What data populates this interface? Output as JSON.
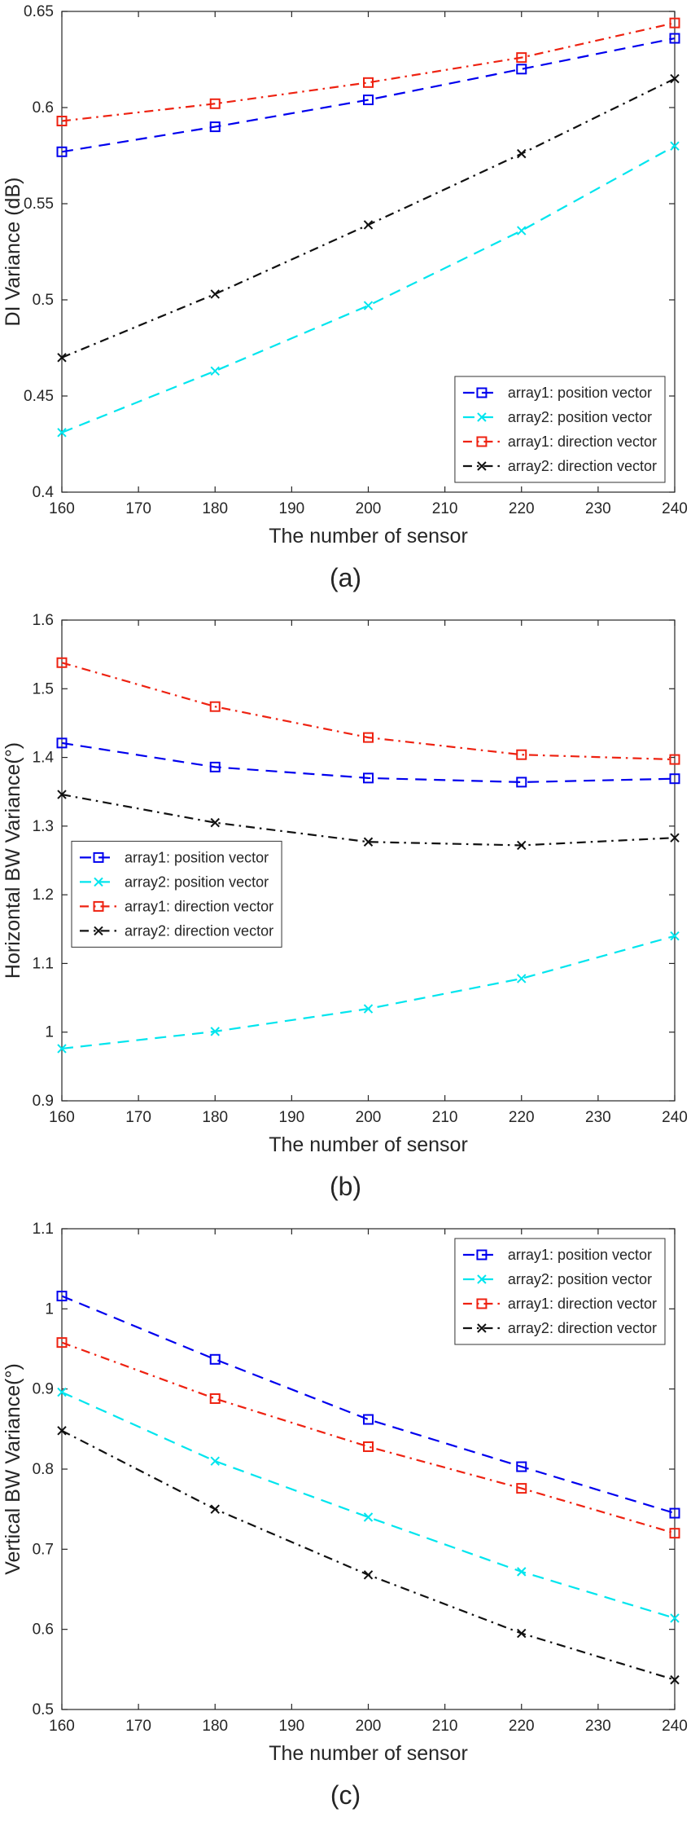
{
  "chart_data": [
    {
      "type": "line",
      "caption": "(a)",
      "xlabel": "The number of sensor",
      "ylabel": "DI Variance (dB)",
      "xlim": [
        160,
        240
      ],
      "ylim": [
        0.4,
        0.65
      ],
      "xticks": [
        160,
        170,
        180,
        190,
        200,
        210,
        220,
        230,
        240
      ],
      "xtick_labels": [
        "160",
        "170",
        "180",
        "190",
        "200",
        "210",
        "220",
        "230",
        "240"
      ],
      "yticks": [
        0.4,
        0.45,
        0.5,
        0.55,
        0.6,
        0.65
      ],
      "ytick_labels": [
        "0.4",
        "0.45",
        "0.5",
        "0.55",
        "0.6",
        "0.65"
      ],
      "grid": false,
      "legend_position": "bottom-right",
      "x": [
        160,
        180,
        200,
        220,
        240
      ],
      "series": [
        {
          "name": "array1: position vector",
          "color": "#0000ee",
          "dash": "dashed",
          "marker": "square",
          "values": [
            0.577,
            0.59,
            0.604,
            0.62,
            0.636
          ]
        },
        {
          "name": "array2: position vector",
          "color": "#00e5ee",
          "dash": "dashed",
          "marker": "x",
          "values": [
            0.431,
            0.463,
            0.497,
            0.536,
            0.58
          ]
        },
        {
          "name": "array1: direction vector",
          "color": "#ee2211",
          "dash": "dashdot",
          "marker": "square",
          "values": [
            0.593,
            0.602,
            0.613,
            0.626,
            0.644
          ]
        },
        {
          "name": "array2: direction vector",
          "color": "#111111",
          "dash": "dashdot",
          "marker": "x",
          "values": [
            0.47,
            0.503,
            0.539,
            0.576,
            0.615
          ]
        }
      ]
    },
    {
      "type": "line",
      "caption": "(b)",
      "xlabel": "The number of sensor",
      "ylabel": "Horizontal BW Variance(°)",
      "xlim": [
        160,
        240
      ],
      "ylim": [
        0.9,
        1.6
      ],
      "xticks": [
        160,
        170,
        180,
        190,
        200,
        210,
        220,
        230,
        240
      ],
      "xtick_labels": [
        "160",
        "170",
        "180",
        "190",
        "200",
        "210",
        "220",
        "230",
        "240"
      ],
      "yticks": [
        0.9,
        1.0,
        1.1,
        1.2,
        1.3,
        1.4,
        1.5,
        1.6
      ],
      "ytick_labels": [
        "0.9",
        "1",
        "1.1",
        "1.2",
        "1.3",
        "1.4",
        "1.5",
        "1.6"
      ],
      "grid": false,
      "legend_position": "left-middle",
      "x": [
        160,
        180,
        200,
        220,
        240
      ],
      "series": [
        {
          "name": "array1: position vector",
          "color": "#0000ee",
          "dash": "dashed",
          "marker": "square",
          "values": [
            1.421,
            1.386,
            1.37,
            1.364,
            1.369
          ]
        },
        {
          "name": "array2: position vector",
          "color": "#00e5ee",
          "dash": "dashed",
          "marker": "x",
          "values": [
            0.976,
            1.001,
            1.034,
            1.078,
            1.14
          ]
        },
        {
          "name": "array1: direction vector",
          "color": "#ee2211",
          "dash": "dashdot",
          "marker": "square",
          "values": [
            1.538,
            1.474,
            1.429,
            1.404,
            1.397
          ]
        },
        {
          "name": "array2: direction vector",
          "color": "#111111",
          "dash": "dashdot",
          "marker": "x",
          "values": [
            1.346,
            1.305,
            1.277,
            1.272,
            1.283
          ]
        }
      ]
    },
    {
      "type": "line",
      "caption": "(c)",
      "xlabel": "The number of sensor",
      "ylabel": "Vertical BW Variance(°)",
      "xlim": [
        160,
        240
      ],
      "ylim": [
        0.5,
        1.1
      ],
      "xticks": [
        160,
        170,
        180,
        190,
        200,
        210,
        220,
        230,
        240
      ],
      "xtick_labels": [
        "160",
        "170",
        "180",
        "190",
        "200",
        "210",
        "220",
        "230",
        "240"
      ],
      "yticks": [
        0.5,
        0.6,
        0.7,
        0.8,
        0.9,
        1.0,
        1.1
      ],
      "ytick_labels": [
        "0.5",
        "0.6",
        "0.7",
        "0.8",
        "0.9",
        "1",
        "1.1"
      ],
      "grid": false,
      "legend_position": "top-right",
      "x": [
        160,
        180,
        200,
        220,
        240
      ],
      "series": [
        {
          "name": "array1: position vector",
          "color": "#0000ee",
          "dash": "dashed",
          "marker": "square",
          "values": [
            1.016,
            0.937,
            0.862,
            0.803,
            0.745
          ]
        },
        {
          "name": "array2: position vector",
          "color": "#00e5ee",
          "dash": "dashed",
          "marker": "x",
          "values": [
            0.896,
            0.81,
            0.74,
            0.672,
            0.614
          ]
        },
        {
          "name": "array1: direction vector",
          "color": "#ee2211",
          "dash": "dashdot",
          "marker": "square",
          "values": [
            0.958,
            0.888,
            0.828,
            0.776,
            0.72
          ]
        },
        {
          "name": "array2: direction vector",
          "color": "#111111",
          "dash": "dashdot",
          "marker": "x",
          "values": [
            0.848,
            0.75,
            0.668,
            0.595,
            0.537
          ]
        }
      ]
    }
  ]
}
